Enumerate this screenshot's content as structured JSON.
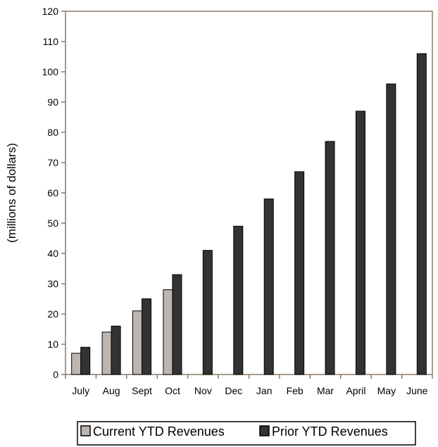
{
  "chart_data": {
    "type": "bar",
    "categories": [
      "July",
      "Aug",
      "Sept",
      "Oct",
      "Nov",
      "Dec",
      "Jan",
      "Feb",
      "Mar",
      "April",
      "May",
      "June"
    ],
    "series": [
      {
        "name": "Current YTD Revenues",
        "values": [
          7,
          14,
          21,
          28,
          null,
          null,
          null,
          null,
          null,
          null,
          null,
          null
        ],
        "color": "#bdb6b0"
      },
      {
        "name": "Prior YTD Revenues",
        "values": [
          9,
          16,
          25,
          33,
          41,
          49,
          58,
          67,
          77,
          87,
          96,
          106
        ],
        "color": "#333333"
      }
    ],
    "xlabel": "",
    "ylabel": "(millions of dollars)",
    "ylim": [
      0,
      120
    ],
    "yticks": [
      "0",
      "10",
      "20",
      "30",
      "40",
      "50",
      "60",
      "70",
      "80",
      "90",
      "100",
      "110",
      "120"
    ],
    "grid": false,
    "legend_position": "bottom"
  }
}
